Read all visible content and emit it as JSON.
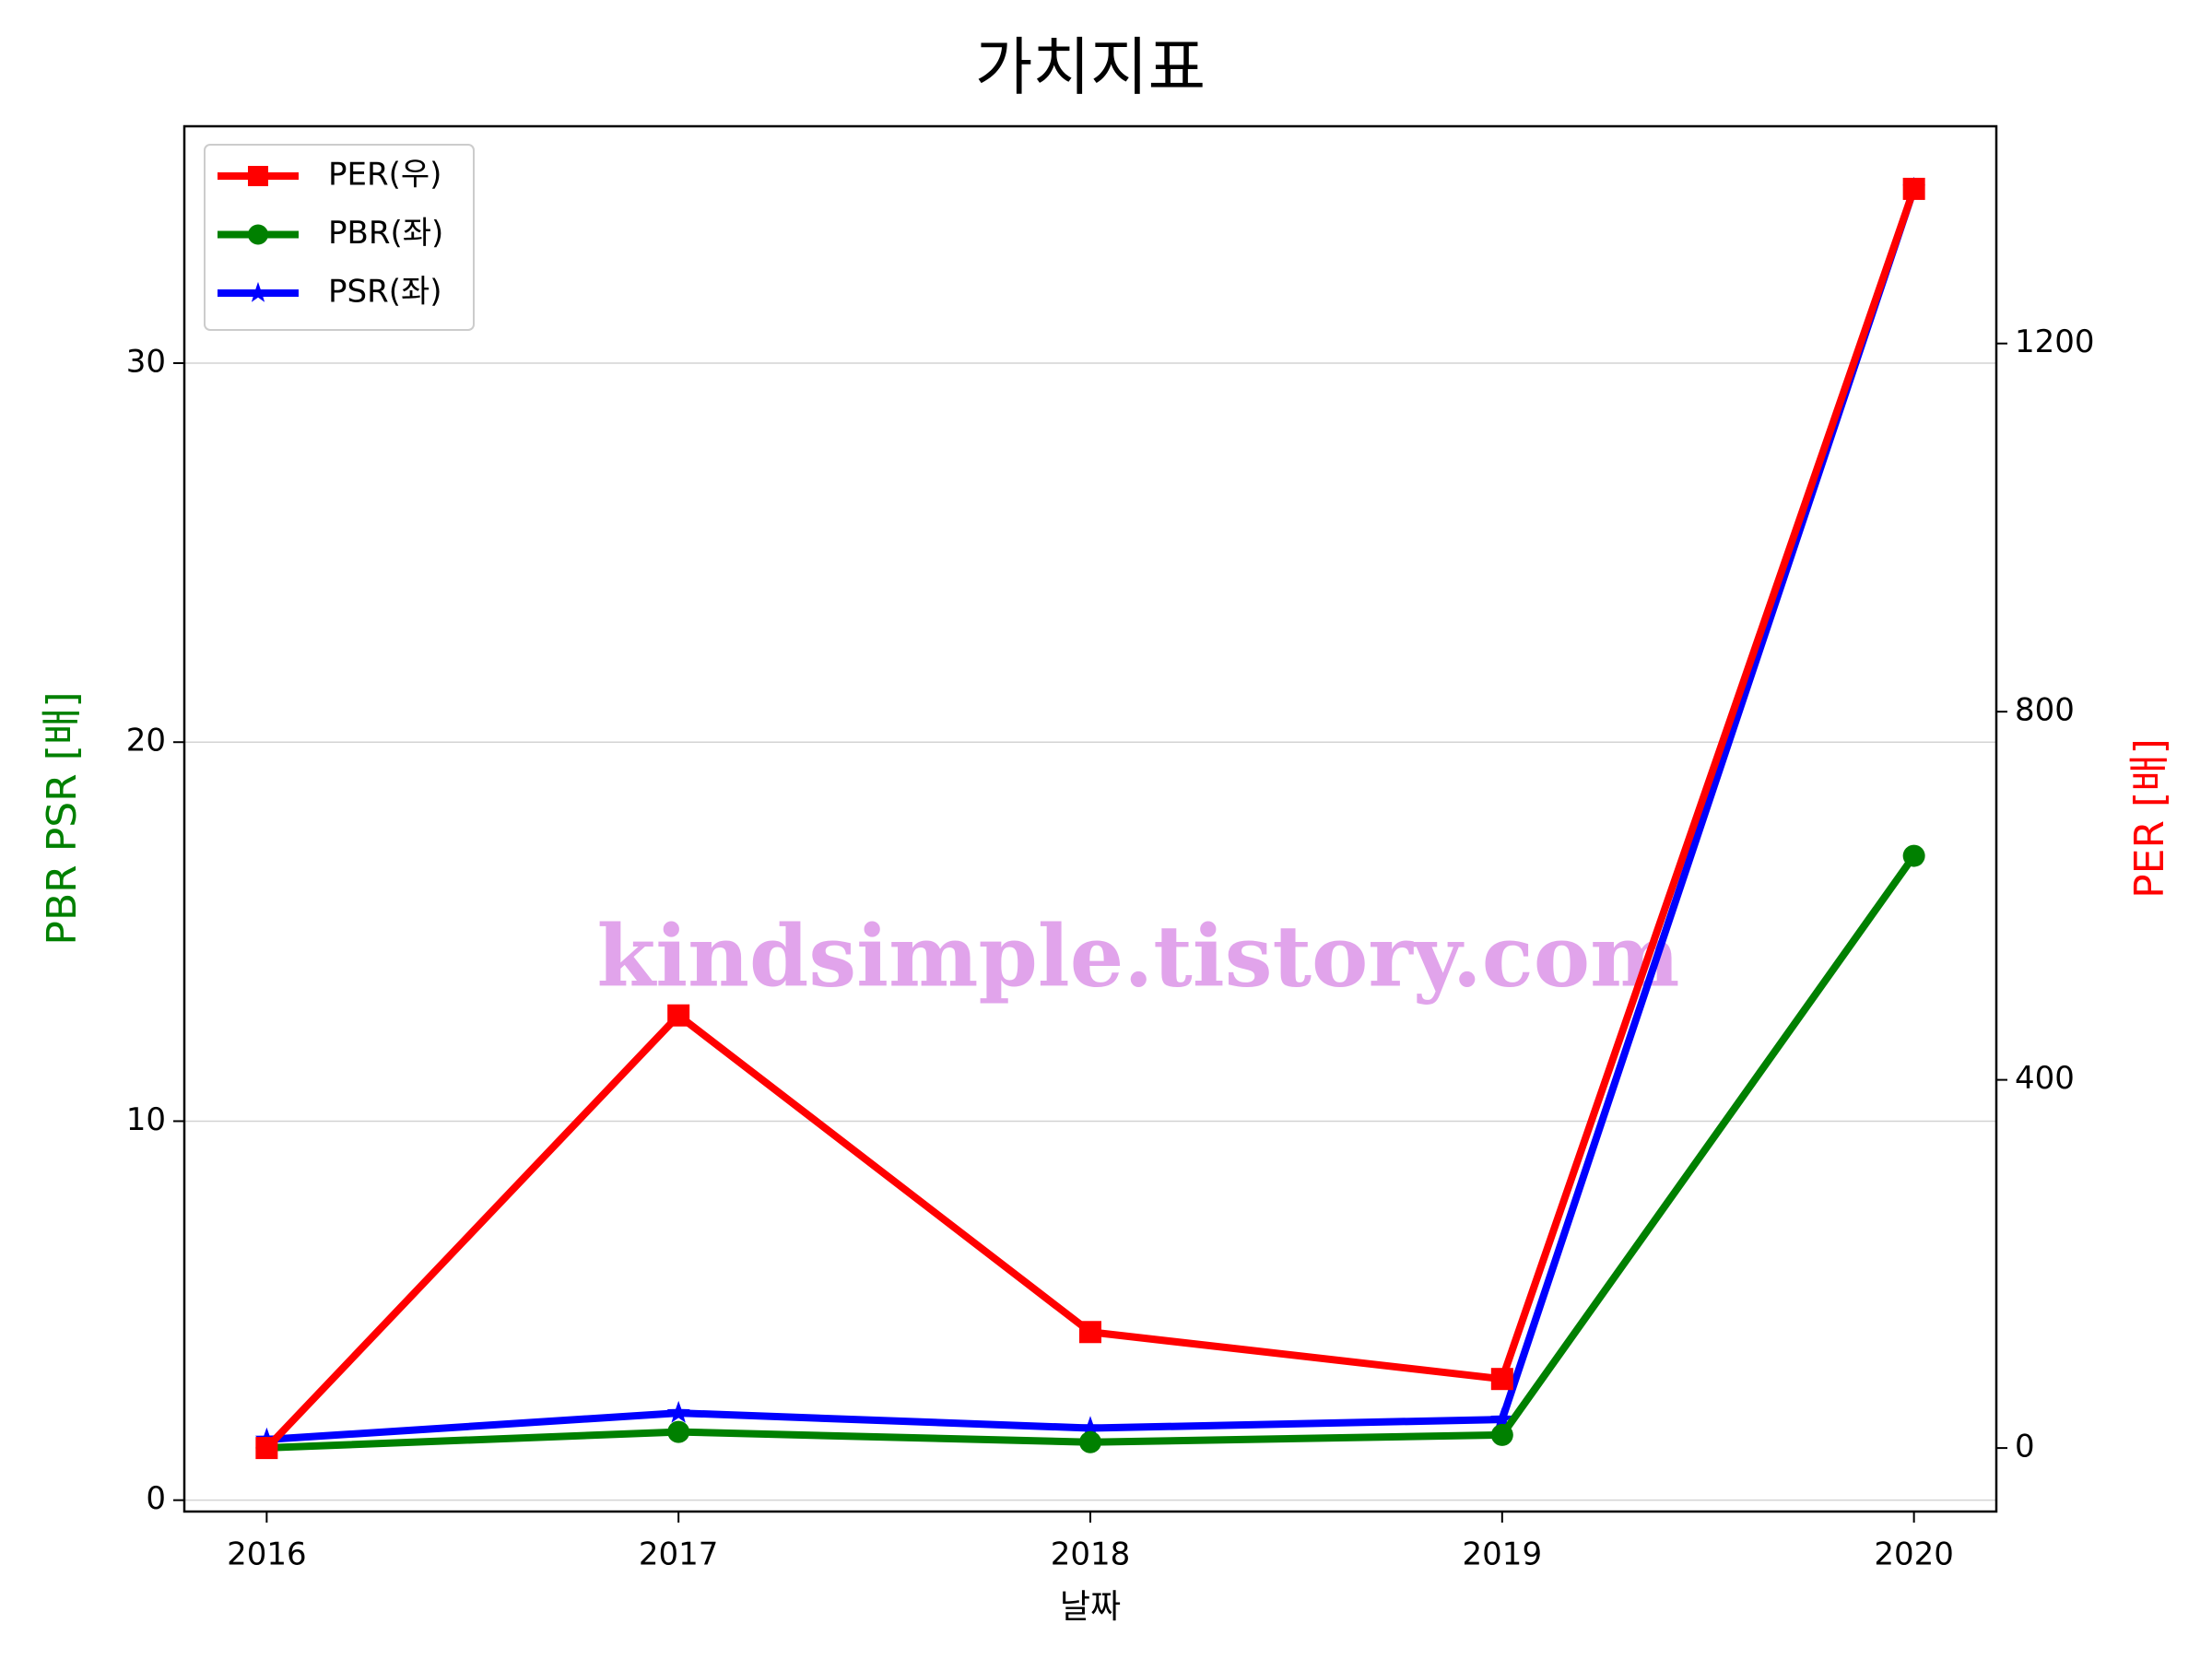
{
  "chart_data": {
    "type": "line",
    "title": "가치지표",
    "x_label": "날짜",
    "y_label": "PBR PSR [배]",
    "y2_label": "PER [배]",
    "watermark": "kindsimple.tistory.com",
    "x": [
      2016,
      2017,
      2018,
      2019,
      2020
    ],
    "xlim": [
      2015.8,
      2020.2
    ],
    "xticks": [
      2016,
      2017,
      2018,
      2019,
      2020
    ],
    "ylim": [
      -0.3,
      36.25
    ],
    "yticks": [
      0,
      10,
      20,
      30
    ],
    "y2lim": [
      -69,
      1436
    ],
    "y2ticks": [
      0,
      400,
      800,
      1200
    ],
    "grid": true,
    "legend": "upper left",
    "series": [
      {
        "name": "PER(우)",
        "color": "#ff0000",
        "marker": "square",
        "axis": "y2",
        "values": [
          0,
          470,
          126,
          75,
          1368
        ]
      },
      {
        "name": "PBR(좌)",
        "color": "#008000",
        "marker": "circle",
        "values": [
          1.38,
          1.8,
          1.53,
          1.72,
          17.0
        ]
      },
      {
        "name": "PSR(좌)",
        "color": "#0000ff",
        "marker": "star",
        "values": [
          1.6,
          2.3,
          1.9,
          2.13,
          34.6
        ]
      }
    ]
  }
}
